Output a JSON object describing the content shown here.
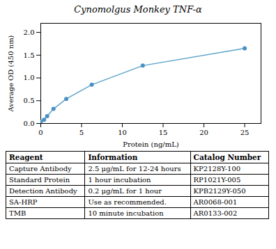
{
  "chart_data": {
    "type": "line",
    "title": "Cynomolgus Monkey TNF-α",
    "xlabel": "Protein (ng/mL)",
    "ylabel": "Average OD (450 nm)",
    "x": [
      0.0,
      0.4,
      0.78,
      1.56,
      3.125,
      6.25,
      12.5,
      25.0
    ],
    "series": [
      {
        "type": "line",
        "color": "#5BA3C9",
        "values": [
          0.04,
          0.08,
          0.16,
          0.32,
          0.54,
          0.85,
          1.27,
          1.65
        ]
      },
      {
        "type": "scatter",
        "color": "#4A90C4",
        "marker": "o",
        "values": [
          0.04,
          0.08,
          0.16,
          0.32,
          0.54,
          0.85,
          1.27,
          1.65
        ]
      }
    ],
    "xlim": [
      0,
      27
    ],
    "xticks": [
      0,
      5,
      10,
      15,
      20,
      25
    ],
    "ylim": [
      0,
      2.2
    ],
    "yticks": [
      {
        "value": 0,
        "label": "0.0"
      },
      0.5,
      {
        "value": 1.0,
        "label": "1.0"
      },
      1.5,
      {
        "value": 2.0,
        "label": "2.0"
      }
    ],
    "grid": false
  },
  "table": {
    "headers": [
      "Reagent",
      "Information",
      "Catalog Number"
    ],
    "rows": [
      [
        "Capture Antibody",
        "2.5 μg/mL for 12-24 hours",
        "KP2128Y-100"
      ],
      [
        "Standard Protein",
        "1 hour incubation",
        "RP1021Y-005"
      ],
      [
        "Detection Antibody",
        "0.2 μg/mL for 1 hour",
        "KPB2129Y-050"
      ],
      [
        "SA-HRP",
        "Use as recommended.",
        "AR0068-001"
      ],
      [
        "TMB",
        "10 minute incubation",
        "AR0133-002"
      ]
    ]
  }
}
